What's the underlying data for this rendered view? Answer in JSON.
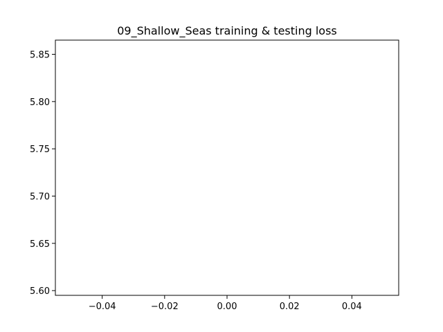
{
  "chart_data": {
    "type": "line",
    "title": "09_Shallow_Seas training & testing loss",
    "xlabel": "",
    "ylabel": "",
    "xlim": [
      -0.055,
      0.055
    ],
    "ylim": [
      5.595,
      5.865
    ],
    "xticks": [
      -0.04,
      -0.02,
      0.0,
      0.02,
      0.04
    ],
    "xtick_labels": [
      "−0.04",
      "−0.02",
      "0.00",
      "0.02",
      "0.04"
    ],
    "yticks": [
      5.6,
      5.65,
      5.7,
      5.75,
      5.8,
      5.85
    ],
    "ytick_labels": [
      "5.60",
      "5.65",
      "5.70",
      "5.75",
      "5.80",
      "5.85"
    ],
    "series": [],
    "grid": false,
    "legend": "none"
  }
}
